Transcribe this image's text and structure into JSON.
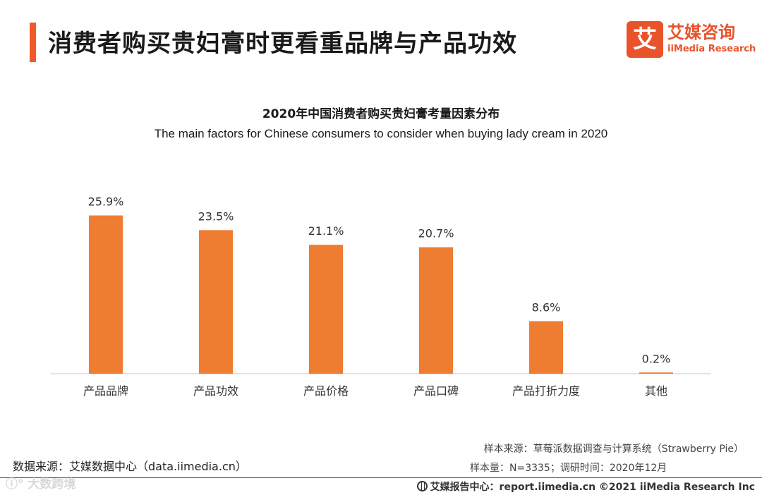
{
  "header": {
    "title": "消费者购买贵妇膏时更看重品牌与产品功效",
    "accent_color": "#f05a28"
  },
  "brand": {
    "mark": "艾",
    "name_cn": "艾媒咨询",
    "name_en": "iiMedia Research",
    "color": "#e8532b"
  },
  "chart_data": {
    "type": "bar",
    "title": "2020年中国消费者购买贵妇膏考量因素分布",
    "subtitle": "The main factors for Chinese consumers to consider when buying lady cream in 2020",
    "categories": [
      "产品品牌",
      "产品功效",
      "产品价格",
      "产品口碑",
      "产品打折力度",
      "其他"
    ],
    "values": [
      25.9,
      23.5,
      21.1,
      20.7,
      8.6,
      0.2
    ],
    "value_labels": [
      "25.9%",
      "23.5%",
      "21.1%",
      "20.7%",
      "8.6%",
      "0.2%"
    ],
    "unit": "%",
    "ylim": [
      0,
      30
    ],
    "grid": false,
    "bar_color": "#ee7d31",
    "legend": "none"
  },
  "sources": {
    "data_source": "数据来源：艾媒数据中心（data.iimedia.cn）",
    "sample_source": "样本来源：草莓派数据调查与计算系统（Strawberry Pie）",
    "sample_size": "样本量：N=3335；调研时间：2020年12月"
  },
  "footer": {
    "report_center": "艾媒报告中心：report.iimedia.cn  ©2021  iiMedia Research  Inc",
    "watermark": "ⓘ° 大数跨境"
  }
}
